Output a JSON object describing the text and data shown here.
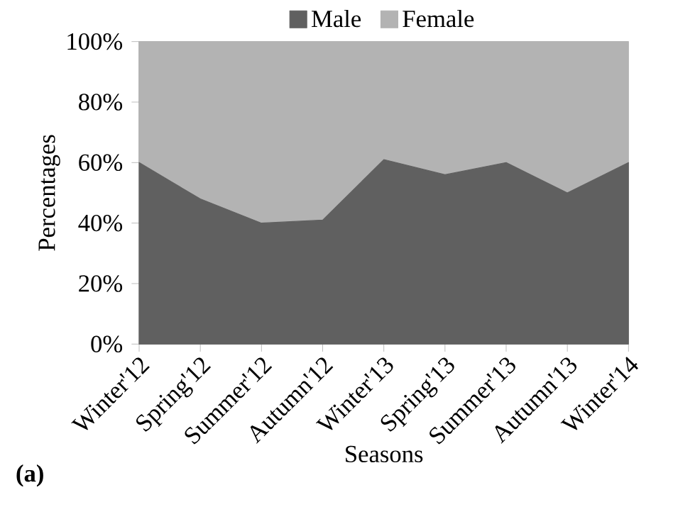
{
  "chart_data": {
    "type": "area",
    "stacked": true,
    "xlabel": "Seasons",
    "ylabel": "Percentages",
    "annotations": [
      "(a)"
    ],
    "categories": [
      "Winter'12",
      "Spring'12",
      "Summer'12",
      "Autumn'12",
      "Winter'13",
      "Spring'13",
      "Summer'13",
      "Autumn'13",
      "Winter'14"
    ],
    "series": [
      {
        "name": "Male",
        "color": "#606060",
        "values": [
          60,
          48,
          40,
          41,
          61,
          56,
          60,
          50,
          60
        ]
      },
      {
        "name": "Female",
        "color": "#b3b3b3",
        "values": [
          40,
          52,
          60,
          59,
          39,
          44,
          40,
          50,
          40
        ]
      }
    ],
    "ylim": [
      0,
      100
    ],
    "yticks": [
      {
        "value": 0,
        "label": "0%"
      },
      {
        "value": 20,
        "label": "20%"
      },
      {
        "value": 40,
        "label": "40%"
      },
      {
        "value": 60,
        "label": "60%"
      },
      {
        "value": 80,
        "label": "80%"
      },
      {
        "value": 100,
        "label": "100%"
      }
    ],
    "legend": "top"
  }
}
